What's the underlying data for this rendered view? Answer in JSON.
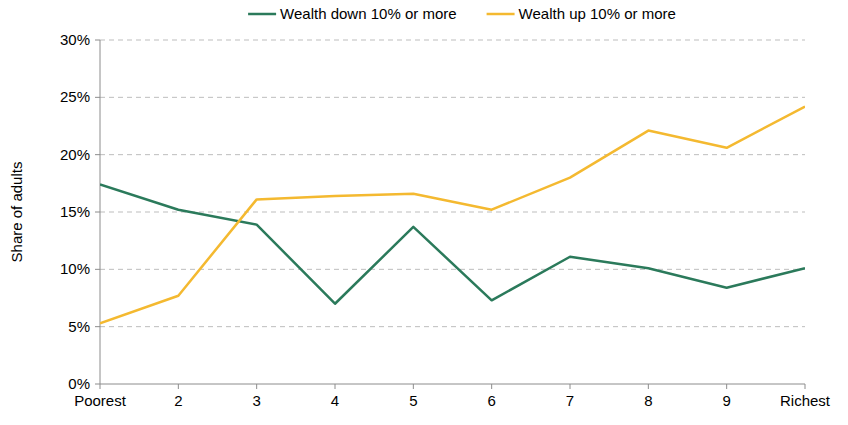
{
  "chart_data": {
    "type": "line",
    "y_label": "Share of adults",
    "categories": [
      "Poorest",
      "2",
      "3",
      "4",
      "5",
      "6",
      "7",
      "8",
      "9",
      "Richest"
    ],
    "series": [
      {
        "name": "Wealth down 10% or more",
        "color": "#2b7a5b",
        "values": [
          17.4,
          15.2,
          13.9,
          7.0,
          13.7,
          7.3,
          11.1,
          10.1,
          8.4,
          10.1
        ]
      },
      {
        "name": "Wealth up 10% or more",
        "color": "#f4b930",
        "values": [
          5.3,
          7.7,
          16.1,
          16.4,
          16.6,
          15.2,
          18.0,
          22.1,
          20.6,
          24.2
        ]
      }
    ],
    "ylim": [
      0,
      30
    ],
    "yticks": [
      {
        "value": 0,
        "label": "0%"
      },
      {
        "value": 5,
        "label": "5%"
      },
      {
        "value": 10,
        "label": "10%"
      },
      {
        "value": 15,
        "label": "15%"
      },
      {
        "value": 20,
        "label": "20%"
      },
      {
        "value": 25,
        "label": "25%"
      },
      {
        "value": 30,
        "label": "30%"
      }
    ],
    "grid": true,
    "legend": "top"
  }
}
